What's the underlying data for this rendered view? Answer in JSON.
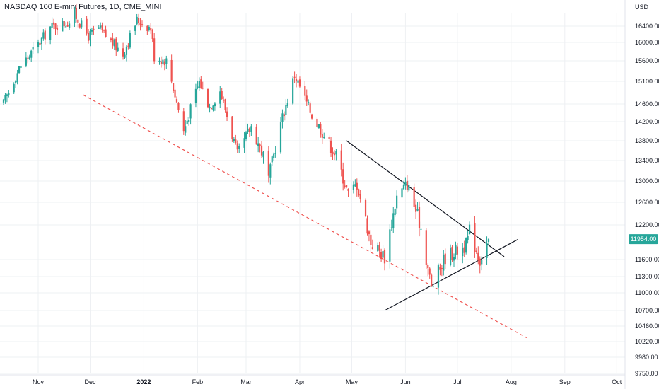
{
  "title": "NASDAQ 100 E-mini Futures, 1D, CME_MINI",
  "currency": "USD",
  "colors": {
    "up": "#26a69a",
    "down": "#ef5350",
    "grid": "#eef0f3",
    "trendline": "#131722",
    "support": "#ef5350",
    "price_tag": "#26a69a"
  },
  "chart_data": {
    "type": "candlestick",
    "title": "NASDAQ 100 E-mini Futures, 1D, CME_MINI",
    "y_unit": "USD",
    "last_price": "11954.00",
    "ylim": [
      9740,
      16700
    ],
    "y_ticks": [
      "16400.00",
      "16000.00",
      "15600.00",
      "15100.00",
      "14600.00",
      "14200.00",
      "13800.00",
      "13400.00",
      "13000.00",
      "12600.00",
      "12200.00",
      "11600.00",
      "11300.00",
      "11000.00",
      "10700.00",
      "10460.00",
      "10220.00",
      "9980.00",
      "9750.00"
    ],
    "x_ticks": [
      {
        "label": "Nov",
        "date": "2021-11-01"
      },
      {
        "label": "Dec",
        "date": "2021-12-01"
      },
      {
        "label": "2022",
        "date": "2022-01-01",
        "bold": true
      },
      {
        "label": "Feb",
        "date": "2022-02-01"
      },
      {
        "label": "Mar",
        "date": "2022-03-01"
      },
      {
        "label": "Apr",
        "date": "2022-04-01"
      },
      {
        "label": "May",
        "date": "2022-05-01"
      },
      {
        "label": "Jun",
        "date": "2022-06-01"
      },
      {
        "label": "Jul",
        "date": "2022-07-01"
      },
      {
        "label": "Aug",
        "date": "2022-08-01"
      },
      {
        "label": "Sep",
        "date": "2022-09-01"
      },
      {
        "label": "Oct",
        "date": "2022-10-01"
      }
    ],
    "anchors": [
      {
        "date": "2021-10-12",
        "close": 14600
      },
      {
        "date": "2021-10-22",
        "close": 15500
      },
      {
        "date": "2021-11-01",
        "close": 15950
      },
      {
        "date": "2021-11-08",
        "close": 16380
      },
      {
        "date": "2021-11-19",
        "close": 16500
      },
      {
        "date": "2021-11-22",
        "close": 16700
      },
      {
        "date": "2021-11-30",
        "close": 16150
      },
      {
        "date": "2021-12-06",
        "close": 16350
      },
      {
        "date": "2021-12-10",
        "close": 16150
      },
      {
        "date": "2021-12-20",
        "close": 15750
      },
      {
        "date": "2021-12-28",
        "close": 16550
      },
      {
        "date": "2022-01-05",
        "close": 16350
      },
      {
        "date": "2022-01-07",
        "close": 15700
      },
      {
        "date": "2022-01-14",
        "close": 15600
      },
      {
        "date": "2022-01-24",
        "close": 14000
      },
      {
        "date": "2022-02-02",
        "close": 15100
      },
      {
        "date": "2022-02-08",
        "close": 14550
      },
      {
        "date": "2022-02-14",
        "close": 14900
      },
      {
        "date": "2022-02-24",
        "close": 13500
      },
      {
        "date": "2022-03-04",
        "close": 14100
      },
      {
        "date": "2022-03-11",
        "close": 13500
      },
      {
        "date": "2022-03-14",
        "close": 13050
      },
      {
        "date": "2022-03-22",
        "close": 14300
      },
      {
        "date": "2022-03-29",
        "close": 15250
      },
      {
        "date": "2022-04-08",
        "close": 14350
      },
      {
        "date": "2022-04-22",
        "close": 13500
      },
      {
        "date": "2022-04-29",
        "close": 12750
      },
      {
        "date": "2022-05-04",
        "close": 12950
      },
      {
        "date": "2022-05-12",
        "close": 11900
      },
      {
        "date": "2022-05-20",
        "close": 11650
      },
      {
        "date": "2022-05-27",
        "close": 12700
      },
      {
        "date": "2022-06-02",
        "close": 12950
      },
      {
        "date": "2022-06-10",
        "close": 12150
      },
      {
        "date": "2022-06-16",
        "close": 11100
      },
      {
        "date": "2022-06-24",
        "close": 11650
      },
      {
        "date": "2022-07-06",
        "close": 11850
      },
      {
        "date": "2022-07-08",
        "close": 12100
      },
      {
        "date": "2022-07-14",
        "close": 11600
      },
      {
        "date": "2022-07-19",
        "close": 11954
      }
    ],
    "drawings": [
      {
        "name": "triangle-upper-trendline",
        "from": {
          "date": "2022-04-28",
          "price": 13800
        },
        "to": {
          "date": "2022-07-28",
          "price": 11650
        }
      },
      {
        "name": "triangle-lower-trendline",
        "from": {
          "date": "2022-05-20",
          "price": 10700
        },
        "to": {
          "date": "2022-08-05",
          "price": 11950
        }
      },
      {
        "name": "dashed-support-line",
        "from": {
          "date": "2021-11-27",
          "price": 14800
        },
        "to": {
          "date": "2022-08-10",
          "price": 10280
        },
        "dashed": true
      }
    ]
  }
}
